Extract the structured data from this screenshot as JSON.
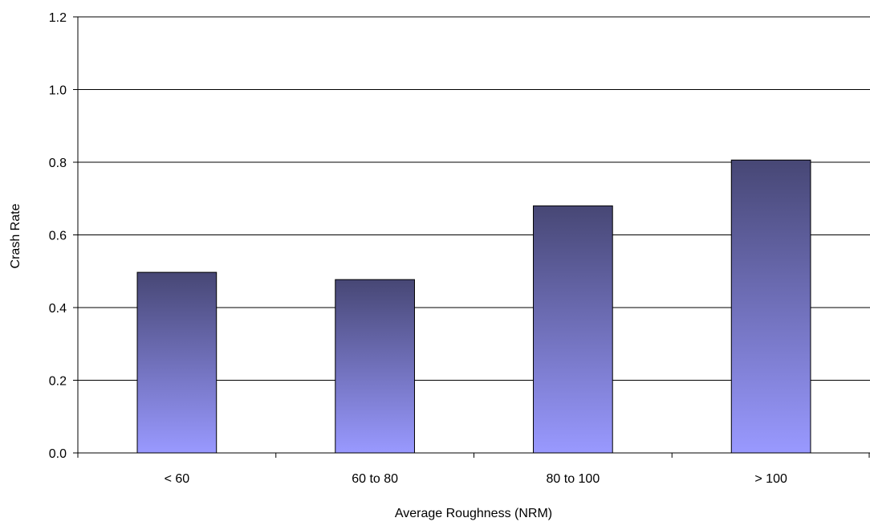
{
  "chart_data": {
    "type": "bar",
    "title": "",
    "xlabel": "Average Roughness (NRM)",
    "ylabel": "Crash Rate",
    "categories": [
      "< 60",
      "60 to 80",
      "80 to 100",
      "> 100"
    ],
    "values": [
      0.497,
      0.477,
      0.68,
      0.806
    ],
    "ylim": [
      0,
      1.2
    ],
    "yticks": [
      "0.0",
      "0.2",
      "0.4",
      "0.6",
      "0.8",
      "1.0",
      "1.2"
    ],
    "grid": true,
    "legend": "none",
    "colors": {
      "bar_top": "#474775",
      "bar_bottom": "#9999FF",
      "bar_border": "#000000",
      "gridline": "#000000",
      "axis": "#000000"
    }
  }
}
